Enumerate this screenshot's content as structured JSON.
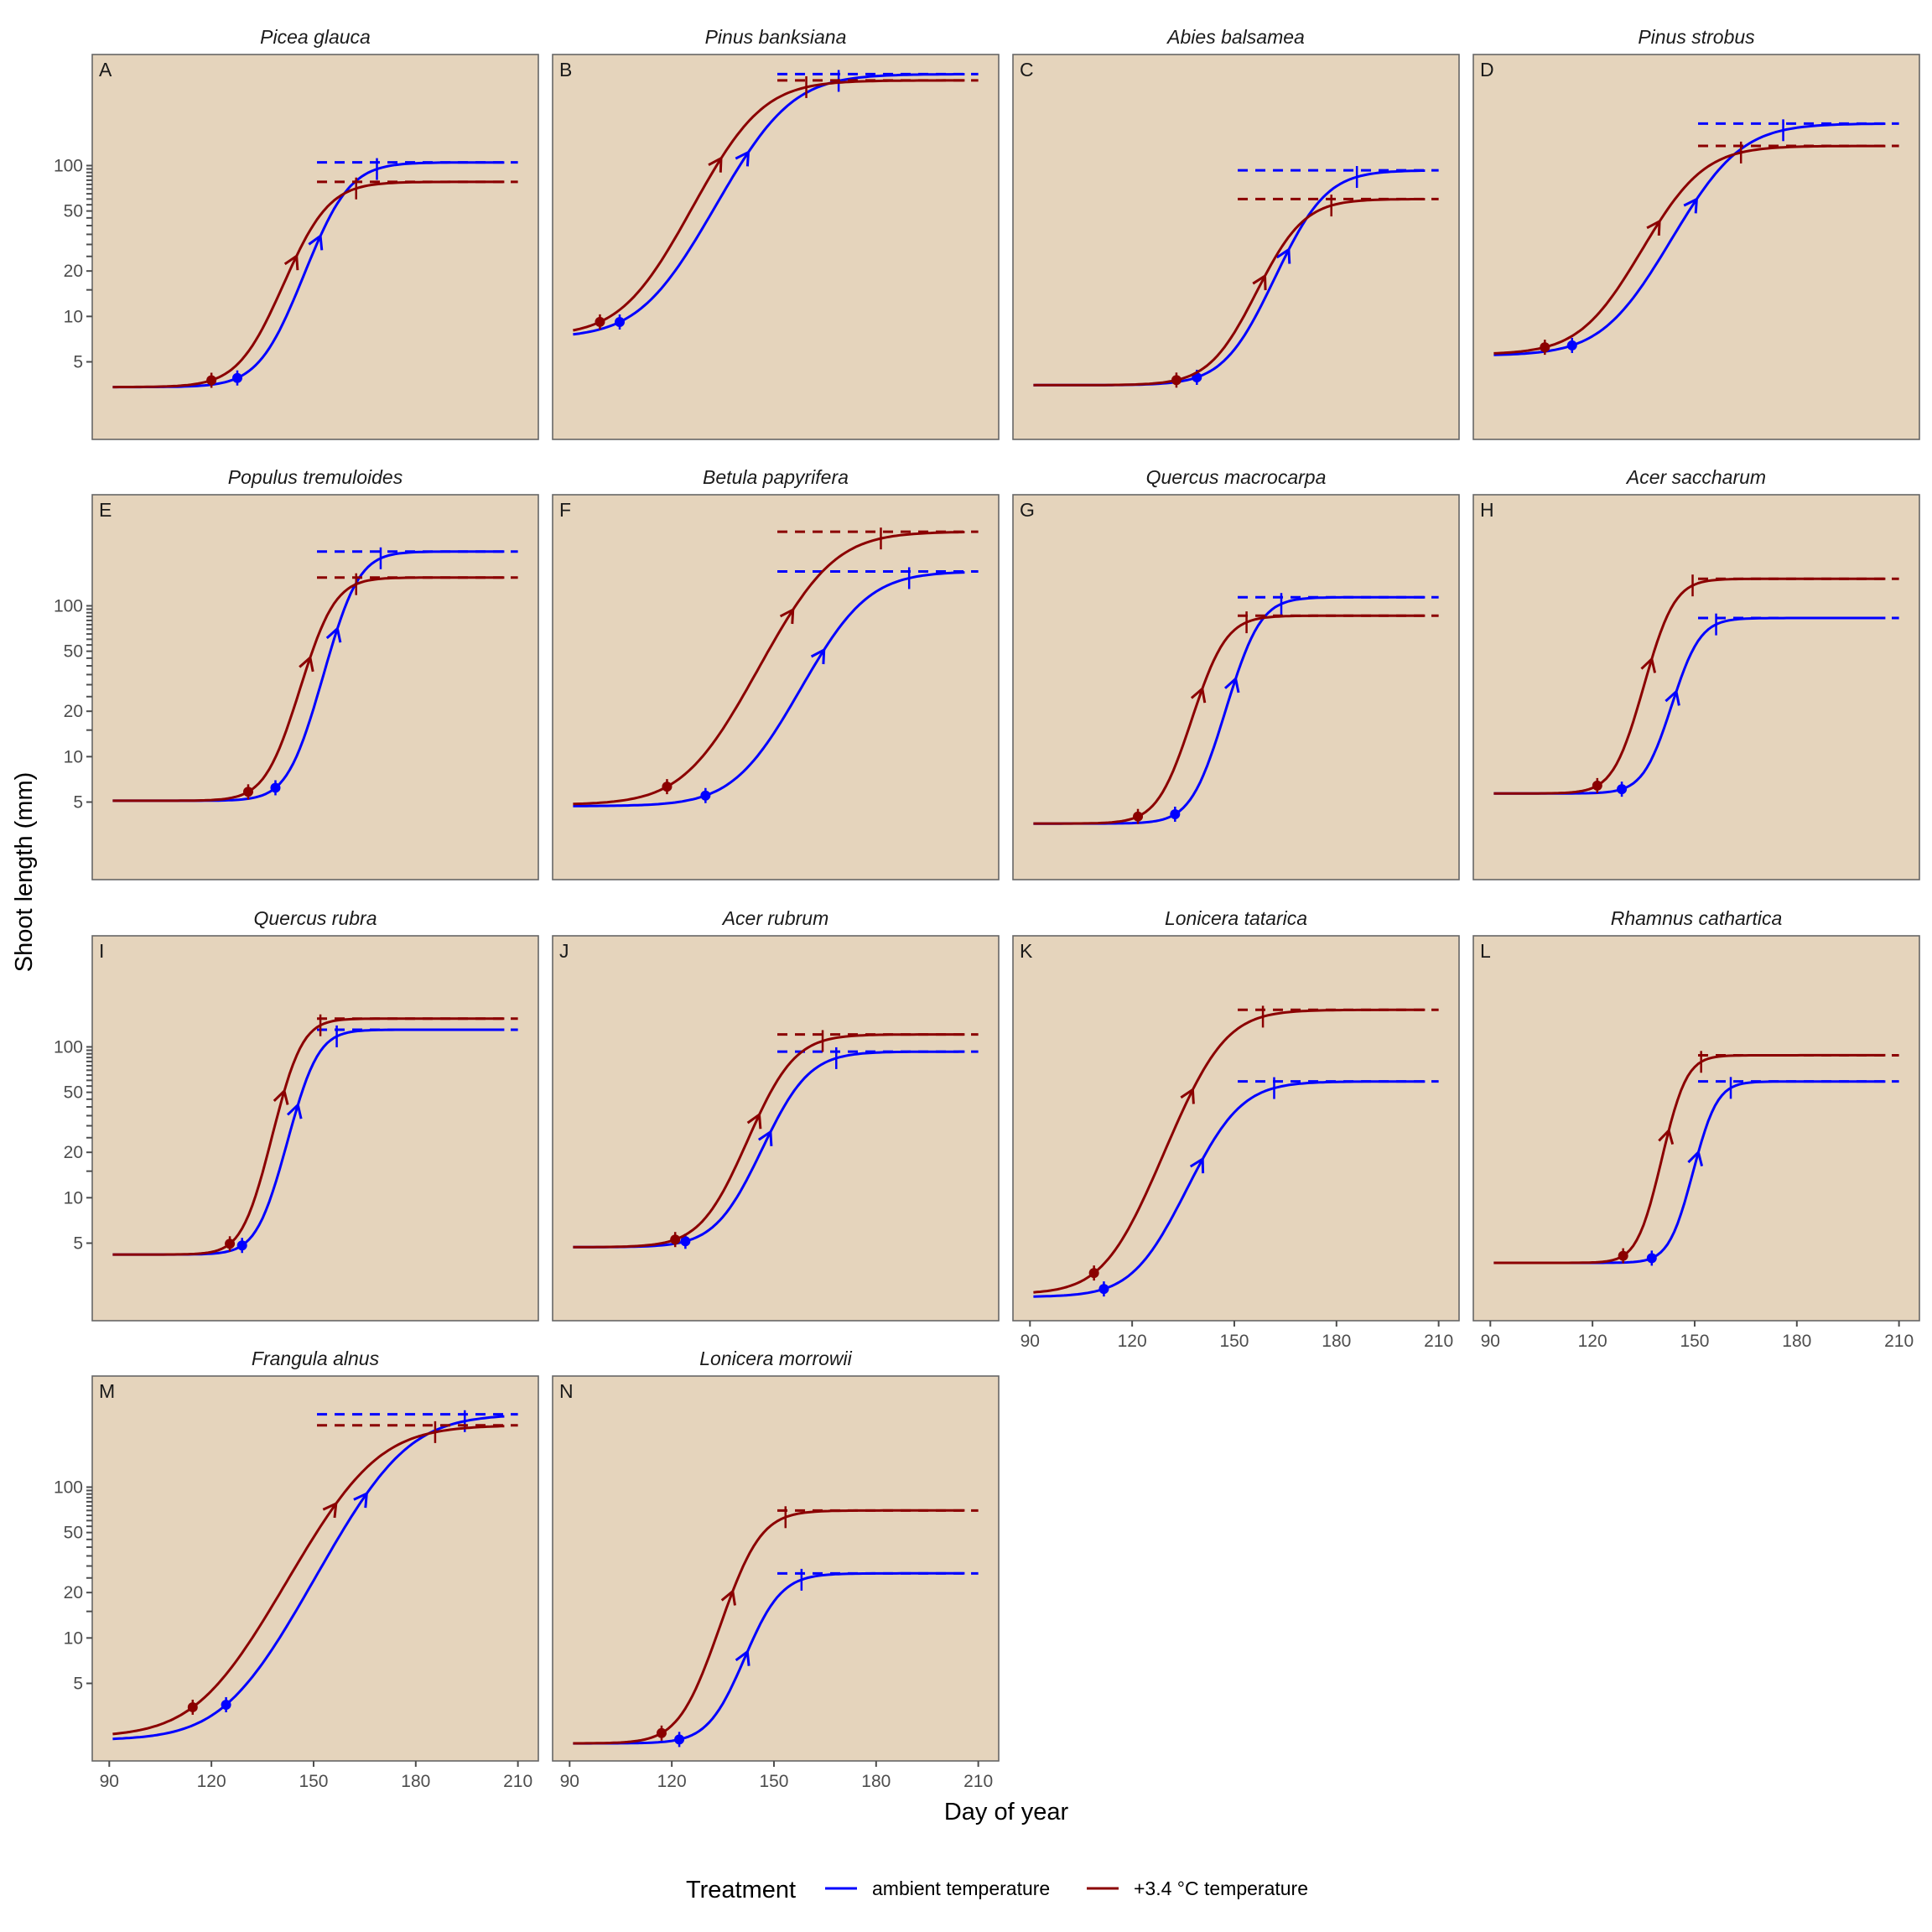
{
  "chart_data": {
    "type": "line",
    "layout": "facet-grid 4 columns",
    "xlabel": "Day of year",
    "ylabel": "Shoot length (mm)",
    "x_ticks": [
      90,
      120,
      150,
      180,
      210
    ],
    "xlim": [
      85,
      216
    ],
    "y_scale": "log10",
    "y_ticks": [
      5,
      10,
      20,
      50,
      100
    ],
    "y_tick_labels": [
      "5",
      "10",
      "20",
      "50",
      "100"
    ],
    "y_minor_ticks": [
      15,
      25,
      30,
      35,
      40,
      45,
      55,
      60,
      65,
      70,
      75,
      80,
      85,
      90,
      95
    ],
    "ylim": [
      1.53,
      545
    ],
    "panel_background": "#e5d4bc",
    "grid": false,
    "legend": {
      "title": "Treatment",
      "position": "bottom",
      "entries": [
        {
          "label": "ambient temperature",
          "color": "#0000ff"
        },
        {
          "label": "+3.4 °C temperature",
          "color": "#8b0000"
        }
      ]
    },
    "markers": {
      "onset": "filled circle (growth onset)",
      "max_rate": "arrow (day of maximum growth rate)",
      "end": "vertical tick (growth cessation)",
      "plateau": "dashed line (asymptotic shoot length)"
    },
    "curve_end_day": 206,
    "curve_start_day": 91,
    "plateau_line_start_day": 151,
    "plateau_line_end_day": 210,
    "panels": [
      {
        "letter": "A",
        "species": "Picea glauca",
        "show_y_axis": true,
        "show_x_axis": false,
        "ambient": {
          "base": 3.4,
          "plateau": 105,
          "onset_day": 127.6,
          "max_rate_day": 152,
          "end_day": 168.6
        },
        "warmed": {
          "base": 3.4,
          "plateau": 78,
          "onset_day": 120,
          "max_rate_day": 145,
          "end_day": 162.5
        }
      },
      {
        "letter": "B",
        "species": "Pinus banksiana",
        "show_y_axis": false,
        "show_x_axis": false,
        "ambient": {
          "base": 7.2,
          "plateau": 404,
          "onset_day": 104.7,
          "max_rate_day": 142.5,
          "end_day": 169
        },
        "warmed": {
          "base": 7.4,
          "plateau": 367,
          "onset_day": 98.9,
          "max_rate_day": 134.5,
          "end_day": 159.5
        }
      },
      {
        "letter": "C",
        "species": "Abies balsamea",
        "show_y_axis": false,
        "show_x_axis": false,
        "ambient": {
          "base": 3.5,
          "plateau": 93,
          "onset_day": 139,
          "max_rate_day": 166,
          "end_day": 186
        },
        "warmed": {
          "base": 3.5,
          "plateau": 60,
          "onset_day": 133,
          "max_rate_day": 159,
          "end_day": 178.5
        }
      },
      {
        "letter": "D",
        "species": "Pinus strobus",
        "show_y_axis": false,
        "show_x_axis": false,
        "ambient": {
          "base": 5.5,
          "plateau": 190,
          "onset_day": 114,
          "max_rate_day": 150.6,
          "end_day": 176
        },
        "warmed": {
          "base": 5.6,
          "plateau": 135,
          "onset_day": 106,
          "max_rate_day": 139.7,
          "end_day": 163.6
        }
      },
      {
        "letter": "E",
        "species": "Populus tremuloides",
        "show_y_axis": true,
        "show_x_axis": false,
        "ambient": {
          "base": 5.1,
          "plateau": 229,
          "onset_day": 138.8,
          "max_rate_day": 157,
          "end_day": 169.7
        },
        "warmed": {
          "base": 5.1,
          "plateau": 154,
          "onset_day": 130.8,
          "max_rate_day": 149,
          "end_day": 162.5
        }
      },
      {
        "letter": "F",
        "species": "Betula papyrifera",
        "show_y_axis": false,
        "show_x_axis": false,
        "ambient": {
          "base": 4.7,
          "plateau": 169,
          "onset_day": 129.9,
          "max_rate_day": 164.7,
          "end_day": 189.7
        },
        "warmed": {
          "base": 4.8,
          "plateau": 310,
          "onset_day": 118.6,
          "max_rate_day": 155.6,
          "end_day": 181.4
        }
      },
      {
        "letter": "G",
        "species": "Quercus macrocarpa",
        "show_y_axis": false,
        "show_x_axis": false,
        "ambient": {
          "base": 3.6,
          "plateau": 114,
          "onset_day": 132.6,
          "max_rate_day": 150.4,
          "end_day": 163.8
        },
        "warmed": {
          "base": 3.6,
          "plateau": 86,
          "onset_day": 121.7,
          "max_rate_day": 140.6,
          "end_day": 153.6
        }
      },
      {
        "letter": "H",
        "species": "Acer saccharum",
        "show_y_axis": false,
        "show_x_axis": false,
        "ambient": {
          "base": 5.7,
          "plateau": 83,
          "onset_day": 128.6,
          "max_rate_day": 144.6,
          "end_day": 156.3
        },
        "warmed": {
          "base": 5.7,
          "plateau": 151,
          "onset_day": 121.4,
          "max_rate_day": 137.4,
          "end_day": 149.4
        }
      },
      {
        "letter": "I",
        "species": "Quercus rubra",
        "show_y_axis": true,
        "show_x_axis": false,
        "ambient": {
          "base": 4.2,
          "plateau": 130,
          "onset_day": 129,
          "max_rate_day": 145.4,
          "end_day": 156.8
        },
        "warmed": {
          "base": 4.2,
          "plateau": 154,
          "onset_day": 125.4,
          "max_rate_day": 141.4,
          "end_day": 152
        }
      },
      {
        "letter": "J",
        "species": "Acer rubrum",
        "show_y_axis": false,
        "show_x_axis": false,
        "ambient": {
          "base": 4.7,
          "plateau": 93,
          "onset_day": 124,
          "max_rate_day": 149,
          "end_day": 168.3
        },
        "warmed": {
          "base": 4.7,
          "plateau": 121,
          "onset_day": 121,
          "max_rate_day": 145.7,
          "end_day": 164.3
        }
      },
      {
        "letter": "K",
        "species": "Lonicera tatarica",
        "show_y_axis": false,
        "show_x_axis": true,
        "ambient": {
          "base": 2.2,
          "plateau": 59,
          "onset_day": 111.7,
          "max_rate_day": 140.7,
          "end_day": 161.7
        },
        "warmed": {
          "base": 2.3,
          "plateau": 176,
          "onset_day": 108.8,
          "max_rate_day": 137.8,
          "end_day": 158.4
        }
      },
      {
        "letter": "L",
        "species": "Rhamnus cathartica",
        "show_y_axis": false,
        "show_x_axis": true,
        "ambient": {
          "base": 3.7,
          "plateau": 59,
          "onset_day": 137.4,
          "max_rate_day": 151.1,
          "end_day": 160.6
        },
        "warmed": {
          "base": 3.7,
          "plateau": 88,
          "onset_day": 129,
          "max_rate_day": 142.4,
          "end_day": 151.9
        }
      },
      {
        "letter": "M",
        "species": "Frangula alnus",
        "show_y_axis": true,
        "show_x_axis": true,
        "ambient": {
          "base": 2.1,
          "plateau": 304,
          "onset_day": 124.3,
          "max_rate_day": 165.6,
          "end_day": 194.4
        },
        "warmed": {
          "base": 2.2,
          "plateau": 257,
          "onset_day": 114.5,
          "max_rate_day": 156.6,
          "end_day": 185.7
        }
      },
      {
        "letter": "N",
        "species": "Lonicera morrowii",
        "show_y_axis": false,
        "show_x_axis": true,
        "ambient": {
          "base": 2.0,
          "plateau": 26.8,
          "onset_day": 122.2,
          "max_rate_day": 142.2,
          "end_day": 158.1
        },
        "warmed": {
          "base": 2.0,
          "plateau": 70,
          "onset_day": 117,
          "max_rate_day": 137.9,
          "end_day": 153.4
        }
      }
    ]
  }
}
